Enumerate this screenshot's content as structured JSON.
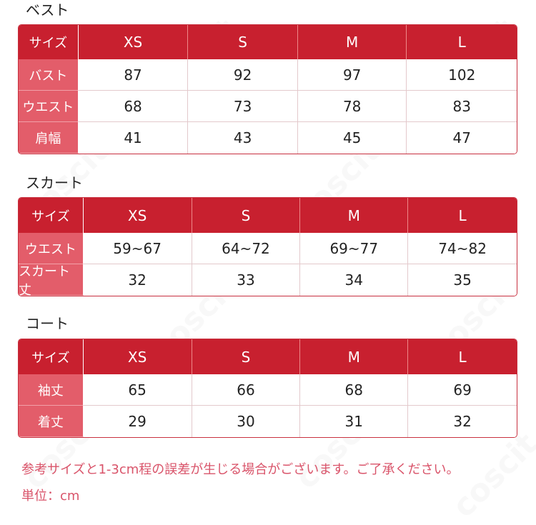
{
  "sections": [
    {
      "title": "ベスト",
      "header": [
        "サイズ",
        "XS",
        "S",
        "M",
        "L"
      ],
      "rows": [
        [
          "バスト",
          "87",
          "92",
          "97",
          "102"
        ],
        [
          "ウエスト",
          "68",
          "73",
          "78",
          "83"
        ],
        [
          "肩幅",
          "41",
          "43",
          "45",
          "47"
        ]
      ]
    },
    {
      "title": "スカート",
      "header": [
        "サイズ",
        "XS",
        "S",
        "M",
        "L"
      ],
      "rows": [
        [
          "ウエスト",
          "59~67",
          "64~72",
          "69~77",
          "74~82"
        ],
        [
          "スカート丈",
          "32",
          "33",
          "34",
          "35"
        ]
      ]
    },
    {
      "title": "コート",
      "header": [
        "サイズ",
        "XS",
        "S",
        "M",
        "L"
      ],
      "rows": [
        [
          "袖丈",
          "65",
          "66",
          "68",
          "69"
        ],
        [
          "着丈",
          "29",
          "30",
          "31",
          "32"
        ]
      ]
    }
  ],
  "note": "参考サイズと1-3cm程の誤差が生じる場合がございます。ご了承ください。",
  "unit": "単位：cm",
  "watermark": "coscit",
  "colors": {
    "header": "#c8202f",
    "label": "#e35d6a",
    "note": "#d9546a"
  }
}
